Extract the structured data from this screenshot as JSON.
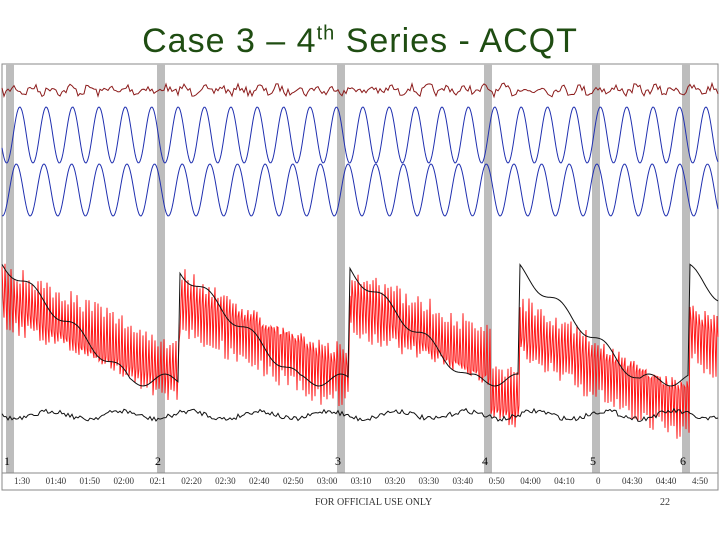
{
  "title": {
    "main": "Case 3 – 4",
    "sup": "th",
    "rest": " Series - ACQT"
  },
  "timeline": {
    "labels": [
      "1:30",
      "01:40",
      "01:50",
      "02:00",
      "02:1",
      "02:20",
      "02:30",
      "02:40",
      "02:50",
      "03:00",
      "03:10",
      "03:20",
      "03:30",
      "03:40",
      "0:50",
      "04:00",
      "04:10",
      "0",
      "04:30",
      "04:40",
      "4:50"
    ]
  },
  "markers": [
    "1",
    "2",
    "3",
    "4",
    "5",
    "6"
  ],
  "footer": {
    "notice": "FOR OFFICIAL USE ONLY",
    "page": "22"
  }
}
